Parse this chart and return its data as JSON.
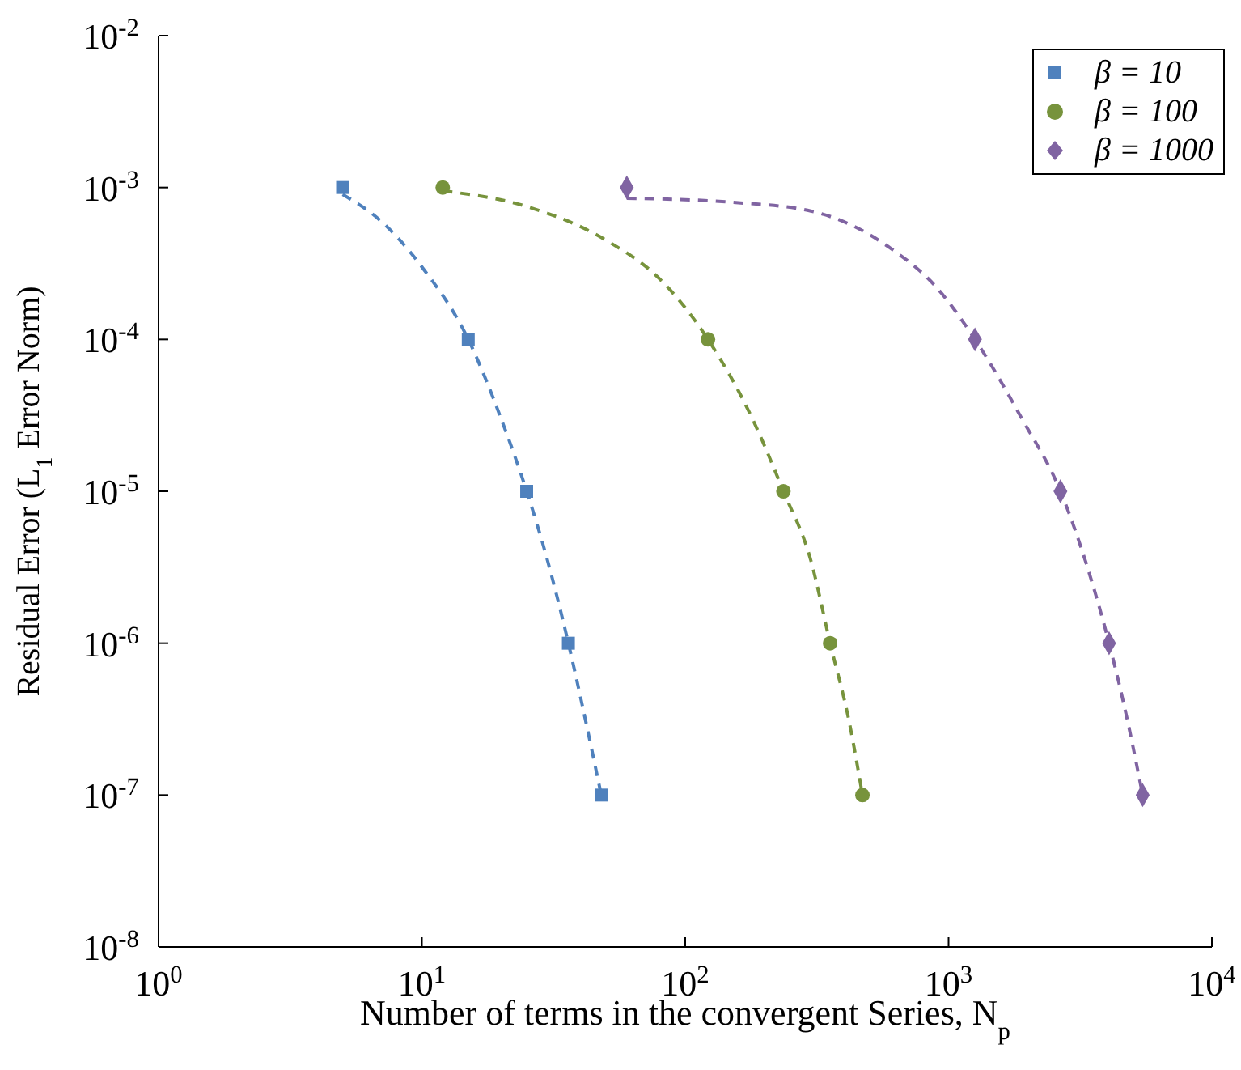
{
  "chart_data": {
    "type": "scatter",
    "xlabel": "Number of terms in the convergent Series, N$_{p}$",
    "ylabel": "Residual Error (L$_{1}$ Error Norm)",
    "log": "xy",
    "xlim": [
      1,
      10000
    ],
    "ylim": [
      1e-08,
      0.01
    ],
    "xticks": [
      {
        "value": 1,
        "label": "10$^{0}$"
      },
      {
        "value": 10,
        "label": "10$^{1}$"
      },
      {
        "value": 100,
        "label": "10$^{2}$"
      },
      {
        "value": 1000,
        "label": "10$^{3}$"
      },
      {
        "value": 10000,
        "label": "10$^{4}$"
      }
    ],
    "yticks": [
      {
        "value": 1e-08,
        "label": "10$^{-8}$"
      },
      {
        "value": 1e-07,
        "label": "10$^{-7}$"
      },
      {
        "value": 1e-06,
        "label": "10$^{-6}$"
      },
      {
        "value": 1e-05,
        "label": "10$^{-5}$"
      },
      {
        "value": 0.0001,
        "label": "10$^{-4}$"
      },
      {
        "value": 0.001,
        "label": "10$^{-3}$"
      },
      {
        "value": 0.01,
        "label": "10$^{-2}$"
      }
    ],
    "grid": false,
    "legend": "top right",
    "series": [
      {
        "name": "β = 10",
        "type": "scatter",
        "marker": "square",
        "color": "#4f81bd",
        "x": [
          5,
          15,
          25,
          36,
          48
        ],
        "values": [
          0.001,
          0.0001,
          1e-05,
          1e-06,
          1e-07
        ]
      },
      {
        "name": "β = 100",
        "type": "scatter",
        "marker": "circle",
        "color": "#77933c",
        "x": [
          12,
          122,
          236,
          355,
          471
        ],
        "values": [
          0.001,
          0.0001,
          1e-05,
          1e-06,
          1e-07
        ]
      },
      {
        "name": "β = 1000",
        "type": "scatter",
        "marker": "diamond",
        "color": "#8064a2",
        "x": [
          60,
          1260,
          2660,
          4070,
          5460
        ],
        "values": [
          0.001,
          0.0001,
          1e-05,
          1e-06,
          1e-07
        ]
      },
      {
        "type": "line",
        "marker": "none",
        "line_style": "dashed",
        "color": "#4f81bd",
        "x": [
          5,
          7,
          10,
          15,
          20,
          25,
          30,
          36,
          42,
          48
        ],
        "values": [
          0.0009,
          0.0006,
          0.0003,
          0.0001,
          3e-05,
          1e-05,
          3.5e-06,
          1e-06,
          3e-07,
          1e-07
        ]
      },
      {
        "type": "line",
        "marker": "none",
        "line_style": "dashed",
        "color": "#77933c",
        "x": [
          12,
          25,
          50,
          80,
          122,
          180,
          236,
          300,
          355,
          420,
          471
        ],
        "values": [
          0.00095,
          0.00075,
          0.00045,
          0.00025,
          0.0001,
          3e-05,
          1e-05,
          3.5e-06,
          1e-06,
          3e-07,
          1e-07
        ]
      },
      {
        "type": "line",
        "marker": "none",
        "line_style": "dashed",
        "color": "#8064a2",
        "x": [
          60,
          150,
          300,
          600,
          900,
          1260,
          1900,
          2660,
          3400,
          4070,
          4800,
          5460
        ],
        "values": [
          0.00085,
          0.0008,
          0.0007,
          0.0004,
          0.00022,
          0.0001,
          3e-05,
          1e-05,
          3e-06,
          1e-06,
          3e-07,
          1e-07
        ]
      }
    ]
  }
}
